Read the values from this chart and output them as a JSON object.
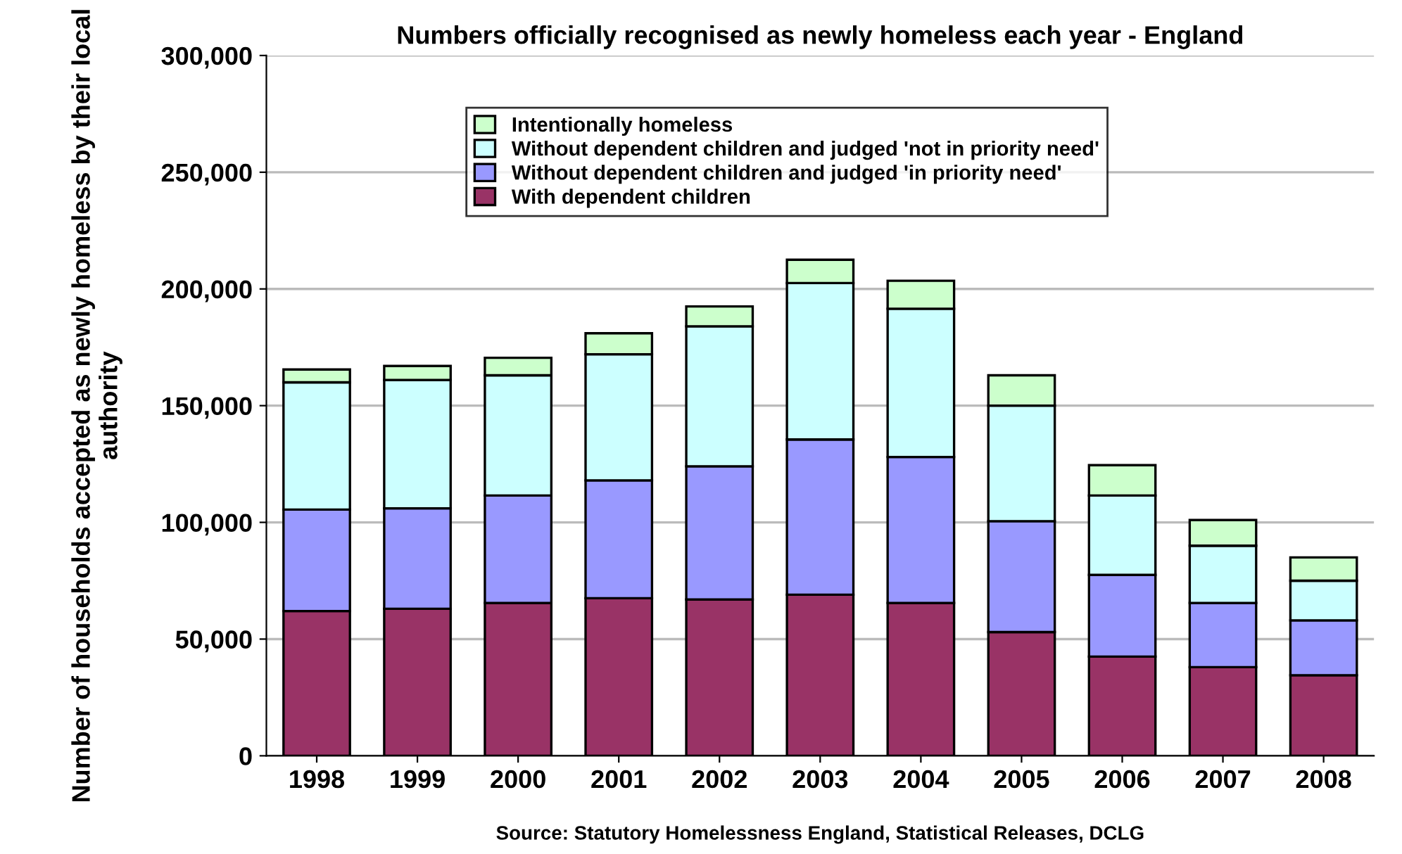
{
  "chart_data": {
    "type": "bar",
    "stacked": true,
    "title": "Numbers officially recognised as newly homeless each year - England",
    "ylabel": "Number of households accepted as newly homeless by their local authority",
    "categories": [
      "1998",
      "1999",
      "2000",
      "2001",
      "2002",
      "2003",
      "2004",
      "2005",
      "2006",
      "2007",
      "2008"
    ],
    "series": [
      {
        "name": "With dependent children",
        "color": "#993366",
        "values": [
          62000,
          63000,
          65500,
          67500,
          67000,
          69000,
          65500,
          53000,
          42500,
          38000,
          34500
        ]
      },
      {
        "name": "Without dependent children and judged 'in priority need'",
        "color": "#9999ff",
        "values": [
          43500,
          43000,
          46000,
          50500,
          57000,
          66500,
          62500,
          47500,
          35000,
          27500,
          23500
        ]
      },
      {
        "name": "Without dependent children and judged 'not in priority need'",
        "color": "#ccffff",
        "values": [
          54500,
          55000,
          51500,
          54000,
          60000,
          67000,
          63500,
          49500,
          34000,
          24500,
          17000
        ]
      },
      {
        "name": "Intentionally homeless",
        "color": "#ccffcc",
        "values": [
          5500,
          6000,
          7500,
          9000,
          8500,
          10000,
          12000,
          13000,
          13000,
          11000,
          10000
        ]
      }
    ],
    "ylim": [
      0,
      300000
    ],
    "yticks": [
      {
        "value": 0,
        "label": "0"
      },
      {
        "value": 50000,
        "label": "50,000"
      },
      {
        "value": 100000,
        "label": "100,000"
      },
      {
        "value": 150000,
        "label": "150,000"
      },
      {
        "value": 200000,
        "label": "200,000"
      },
      {
        "value": 250000,
        "label": "250,000"
      },
      {
        "value": 300000,
        "label": "300,000"
      }
    ],
    "grid": "y",
    "legend": "top",
    "annotations": [
      "Source: Statutory Homelessness England, Statistical Releases, DCLG"
    ]
  }
}
